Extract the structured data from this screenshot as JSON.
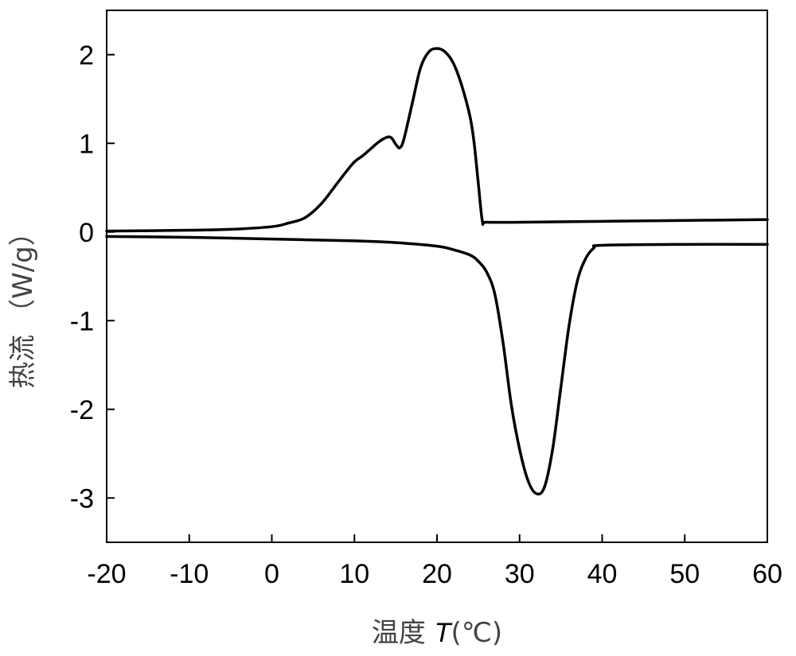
{
  "chart_data": {
    "type": "line",
    "title": "",
    "xlabel": {
      "prefix": "温度 ",
      "var": "T",
      "unit": "(℃)"
    },
    "ylabel": "热流 （W/g）",
    "xlim": [
      -20,
      60
    ],
    "ylim": [
      -3.5,
      2.5
    ],
    "xticks": [
      -20,
      -10,
      0,
      10,
      20,
      30,
      40,
      50,
      60
    ],
    "xtick_labels": [
      "-20",
      "-10",
      "0",
      "10",
      "20",
      "30",
      "40",
      "50",
      "60"
    ],
    "yticks": [
      -3,
      -2,
      -1,
      0,
      1,
      2
    ],
    "ytick_labels": [
      "-3",
      "-2",
      "-1",
      "0",
      "1",
      "2"
    ],
    "grid": false,
    "series": [
      {
        "color": "#000000",
        "x": [
          -20,
          -10,
          -5,
          0,
          2,
          4,
          6,
          8,
          9,
          10,
          11,
          12,
          13,
          14,
          14.5,
          15,
          15.5,
          16,
          17,
          18,
          19,
          20,
          21,
          22,
          23,
          24,
          24.5,
          25,
          25.5,
          26,
          30,
          40,
          50,
          60
        ],
        "y": [
          0.01,
          0.02,
          0.03,
          0.06,
          0.1,
          0.16,
          0.32,
          0.56,
          0.68,
          0.79,
          0.86,
          0.94,
          1.02,
          1.07,
          1.06,
          0.99,
          0.95,
          1.05,
          1.45,
          1.85,
          2.03,
          2.07,
          2.03,
          1.9,
          1.65,
          1.3,
          1.0,
          0.55,
          0.12,
          0.11,
          0.11,
          0.12,
          0.13,
          0.14
        ]
      },
      {
        "color": "#000000",
        "x": [
          -20,
          -10,
          0,
          10,
          15,
          20,
          22,
          24,
          25,
          26,
          27,
          28,
          29,
          30,
          31,
          32,
          33,
          34,
          35,
          36,
          37,
          38,
          39,
          40,
          50,
          60
        ],
        "y": [
          -0.05,
          -0.06,
          -0.08,
          -0.1,
          -0.12,
          -0.16,
          -0.2,
          -0.26,
          -0.33,
          -0.45,
          -0.7,
          -1.25,
          -1.95,
          -2.45,
          -2.8,
          -2.95,
          -2.88,
          -2.45,
          -1.75,
          -1.05,
          -0.55,
          -0.3,
          -0.18,
          -0.15,
          -0.14,
          -0.14
        ]
      }
    ]
  }
}
